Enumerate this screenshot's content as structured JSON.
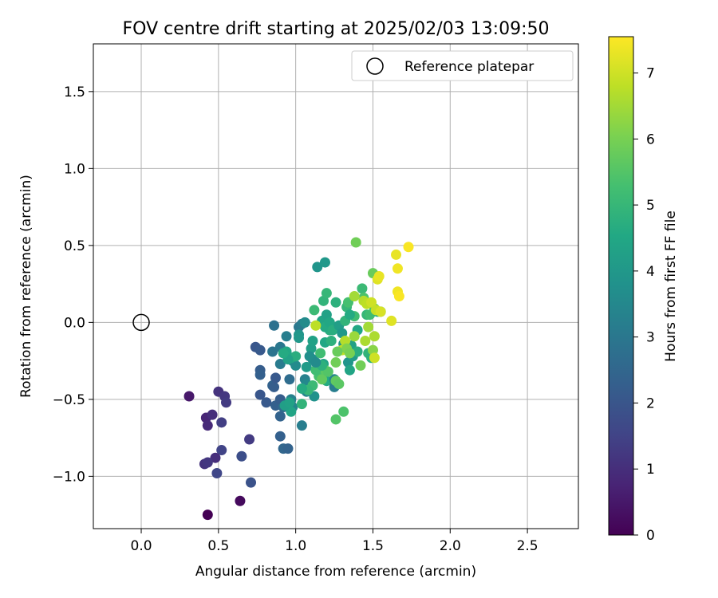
{
  "chart_data": {
    "type": "scatter",
    "title": "FOV centre drift starting at 2025/02/03 13:09:50",
    "xlabel": "Angular distance from reference (arcmin)",
    "ylabel": "Rotation from reference (arcmin)",
    "xlim": [
      -0.31,
      2.83
    ],
    "ylim": [
      -1.34,
      1.81
    ],
    "xticks": [
      "0.0",
      "0.5",
      "1.0",
      "1.5",
      "2.0",
      "2.5"
    ],
    "xtick_values": [
      0,
      0.5,
      1.0,
      1.5,
      2.0,
      2.5
    ],
    "yticks": [
      "−1.0",
      "−0.5",
      "0.0",
      "0.5",
      "1.0",
      "1.5"
    ],
    "ytick_values": [
      -1.0,
      -0.5,
      0.0,
      0.5,
      1.0,
      1.5
    ],
    "grid": true,
    "legend": {
      "label": "Reference platepar",
      "placement": "top-right"
    },
    "reference_point": {
      "x": 0.0,
      "y": 0.0
    },
    "colorbar": {
      "label": "Hours from first FF file",
      "colormap": "viridis",
      "range": [
        0,
        7.55
      ],
      "ticks": [
        "0",
        "1",
        "2",
        "3",
        "4",
        "5",
        "6",
        "7"
      ],
      "tick_values": [
        0,
        1,
        2,
        3,
        4,
        5,
        6,
        7
      ]
    },
    "points": [
      [
        0.43,
        -1.25,
        0.0
      ],
      [
        0.64,
        -1.16,
        0.2
      ],
      [
        0.31,
        -0.48,
        0.5
      ],
      [
        0.42,
        -0.62,
        0.8
      ],
      [
        0.43,
        -0.67,
        0.9
      ],
      [
        0.46,
        -0.6,
        1.0
      ],
      [
        0.5,
        -0.45,
        1.1
      ],
      [
        0.54,
        -0.48,
        1.2
      ],
      [
        0.55,
        -0.52,
        1.3
      ],
      [
        0.52,
        -0.65,
        1.4
      ],
      [
        0.52,
        -0.83,
        1.5
      ],
      [
        0.48,
        -0.88,
        1.0
      ],
      [
        0.41,
        -0.92,
        1.1
      ],
      [
        0.43,
        -0.91,
        1.2
      ],
      [
        0.49,
        -0.98,
        1.6
      ],
      [
        0.7,
        -0.76,
        1.3
      ],
      [
        0.65,
        -0.87,
        1.8
      ],
      [
        0.71,
        -1.04,
        1.9
      ],
      [
        0.74,
        -0.16,
        2.0
      ],
      [
        0.77,
        -0.18,
        2.1
      ],
      [
        0.77,
        -0.31,
        2.2
      ],
      [
        0.77,
        -0.34,
        2.3
      ],
      [
        0.77,
        -0.47,
        2.0
      ],
      [
        0.81,
        -0.52,
        2.1
      ],
      [
        0.85,
        -0.41,
        2.4
      ],
      [
        0.86,
        -0.42,
        2.2
      ],
      [
        0.87,
        -0.54,
        2.3
      ],
      [
        0.87,
        -0.36,
        2.1
      ],
      [
        0.9,
        -0.61,
        2.4
      ],
      [
        0.9,
        -0.5,
        2.2
      ],
      [
        0.9,
        -0.74,
        2.3
      ],
      [
        0.92,
        -0.82,
        2.5
      ],
      [
        0.95,
        -0.82,
        2.4
      ],
      [
        0.92,
        -0.55,
        2.6
      ],
      [
        0.96,
        -0.37,
        2.7
      ],
      [
        0.86,
        -0.02,
        2.8
      ],
      [
        0.85,
        -0.19,
        2.9
      ],
      [
        0.9,
        -0.16,
        3.0
      ],
      [
        0.9,
        -0.27,
        3.1
      ],
      [
        0.94,
        -0.09,
        3.2
      ],
      [
        0.97,
        -0.5,
        3.3
      ],
      [
        0.98,
        -0.55,
        3.4
      ],
      [
        0.98,
        -0.25,
        3.5
      ],
      [
        1.0,
        -0.28,
        3.6
      ],
      [
        1.02,
        -0.03,
        3.0
      ],
      [
        1.04,
        -0.01,
        3.1
      ],
      [
        1.04,
        -0.67,
        3.2
      ],
      [
        1.06,
        -0.37,
        3.3
      ],
      [
        1.07,
        -0.45,
        3.4
      ],
      [
        1.07,
        -0.4,
        3.5
      ],
      [
        1.06,
        0.0,
        3.6
      ],
      [
        1.11,
        -0.24,
        3.7
      ],
      [
        1.12,
        -0.48,
        3.8
      ],
      [
        1.14,
        0.36,
        3.9
      ],
      [
        1.19,
        0.39,
        4.0
      ],
      [
        1.07,
        -0.29,
        4.1
      ],
      [
        1.1,
        -0.17,
        4.2
      ],
      [
        1.11,
        -0.12,
        4.3
      ],
      [
        1.18,
        -0.27,
        4.4
      ],
      [
        1.19,
        -0.13,
        4.5
      ],
      [
        1.2,
        -0.38,
        4.6
      ],
      [
        1.22,
        -0.05,
        4.7
      ],
      [
        1.23,
        -0.12,
        4.8
      ],
      [
        1.25,
        -0.42,
        3.2
      ],
      [
        1.25,
        -0.37,
        3.4
      ],
      [
        1.18,
        0.14,
        4.9
      ],
      [
        1.2,
        0.19,
        5.0
      ],
      [
        1.12,
        0.08,
        5.1
      ],
      [
        1.17,
        0.01,
        4.4
      ],
      [
        1.19,
        -0.03,
        4.6
      ],
      [
        1.2,
        0.05,
        4.3
      ],
      [
        1.22,
        0.0,
        4.5
      ],
      [
        1.24,
        -0.05,
        4.7
      ],
      [
        1.26,
        0.13,
        4.8
      ],
      [
        1.28,
        -0.02,
        4.2
      ],
      [
        1.3,
        -0.07,
        4.0
      ],
      [
        1.31,
        -0.14,
        3.8
      ],
      [
        1.32,
        0.01,
        4.9
      ],
      [
        1.33,
        0.1,
        5.0
      ],
      [
        1.34,
        -0.26,
        3.9
      ],
      [
        1.35,
        -0.31,
        4.4
      ],
      [
        1.37,
        -0.22,
        4.1
      ],
      [
        1.38,
        0.04,
        5.2
      ],
      [
        1.34,
        0.13,
        5.3
      ],
      [
        1.35,
        0.05,
        4.6
      ],
      [
        1.36,
        -0.15,
        4.3
      ],
      [
        1.4,
        -0.05,
        4.5
      ],
      [
        1.4,
        -0.19,
        4.7
      ],
      [
        1.43,
        0.22,
        5.1
      ],
      [
        1.44,
        0.16,
        5.4
      ],
      [
        1.46,
        0.05,
        5.0
      ],
      [
        1.47,
        -0.2,
        4.9
      ],
      [
        1.48,
        0.05,
        5.2
      ],
      [
        1.49,
        -0.23,
        4.8
      ],
      [
        1.5,
        0.32,
        5.8
      ],
      [
        1.51,
        0.09,
        5.5
      ],
      [
        1.53,
        0.07,
        4.6
      ],
      [
        1.55,
        0.07,
        4.8
      ],
      [
        1.39,
        0.52,
        5.9
      ],
      [
        1.45,
        -0.12,
        6.6
      ],
      [
        1.44,
        0.14,
        6.7
      ],
      [
        1.46,
        0.12,
        6.8
      ],
      [
        1.47,
        -0.03,
        6.5
      ],
      [
        1.49,
        0.13,
        7.0
      ],
      [
        1.5,
        -0.18,
        6.2
      ],
      [
        1.51,
        -0.23,
        7.0
      ],
      [
        1.52,
        0.08,
        6.9
      ],
      [
        1.53,
        0.28,
        7.2
      ],
      [
        1.54,
        0.3,
        7.3
      ],
      [
        1.55,
        0.07,
        7.1
      ],
      [
        1.62,
        0.01,
        7.2
      ],
      [
        1.65,
        0.44,
        7.3
      ],
      [
        1.66,
        0.35,
        7.4
      ],
      [
        1.66,
        0.2,
        7.4
      ],
      [
        1.67,
        0.17,
        7.5
      ],
      [
        1.73,
        0.49,
        7.5
      ],
      [
        1.51,
        -0.09,
        6.6
      ],
      [
        1.38,
        -0.09,
        6.4
      ],
      [
        1.38,
        0.17,
        6.5
      ],
      [
        1.32,
        -0.12,
        6.7
      ],
      [
        1.3,
        -0.18,
        6.8
      ],
      [
        1.33,
        -0.17,
        6.1
      ],
      [
        1.35,
        -0.2,
        6.0
      ],
      [
        1.42,
        -0.28,
        5.9
      ],
      [
        1.27,
        -0.19,
        5.8
      ],
      [
        1.26,
        -0.26,
        5.9
      ],
      [
        1.26,
        -0.38,
        5.7
      ],
      [
        1.28,
        -0.4,
        5.6
      ],
      [
        1.26,
        -0.63,
        5.5
      ],
      [
        1.31,
        -0.58,
        5.4
      ],
      [
        1.15,
        -0.35,
        5.3
      ],
      [
        1.17,
        -0.37,
        5.7
      ],
      [
        1.19,
        -0.31,
        5.6
      ],
      [
        1.21,
        -0.32,
        5.5
      ],
      [
        1.13,
        -0.31,
        5.2
      ],
      [
        1.11,
        -0.41,
        5.1
      ],
      [
        1.08,
        -0.44,
        5.0
      ],
      [
        1.04,
        -0.53,
        4.9
      ],
      [
        1.04,
        -0.43,
        4.6
      ],
      [
        0.97,
        -0.58,
        4.4
      ],
      [
        0.93,
        -0.54,
        4.2
      ],
      [
        0.96,
        -0.52,
        4.3
      ],
      [
        0.97,
        -0.23,
        4.5
      ],
      [
        1.0,
        -0.22,
        4.7
      ],
      [
        0.94,
        -0.19,
        4.5
      ],
      [
        0.95,
        -0.24,
        4.3
      ],
      [
        0.92,
        -0.2,
        4.6
      ],
      [
        1.13,
        -0.02,
        6.8
      ],
      [
        1.16,
        -0.2,
        5.2
      ],
      [
        1.17,
        -0.28,
        4.8
      ],
      [
        1.02,
        -0.08,
        3.9
      ],
      [
        1.02,
        -0.1,
        4.0
      ],
      [
        1.09,
        -0.22,
        3.7
      ],
      [
        1.13,
        -0.26,
        3.6
      ]
    ]
  }
}
